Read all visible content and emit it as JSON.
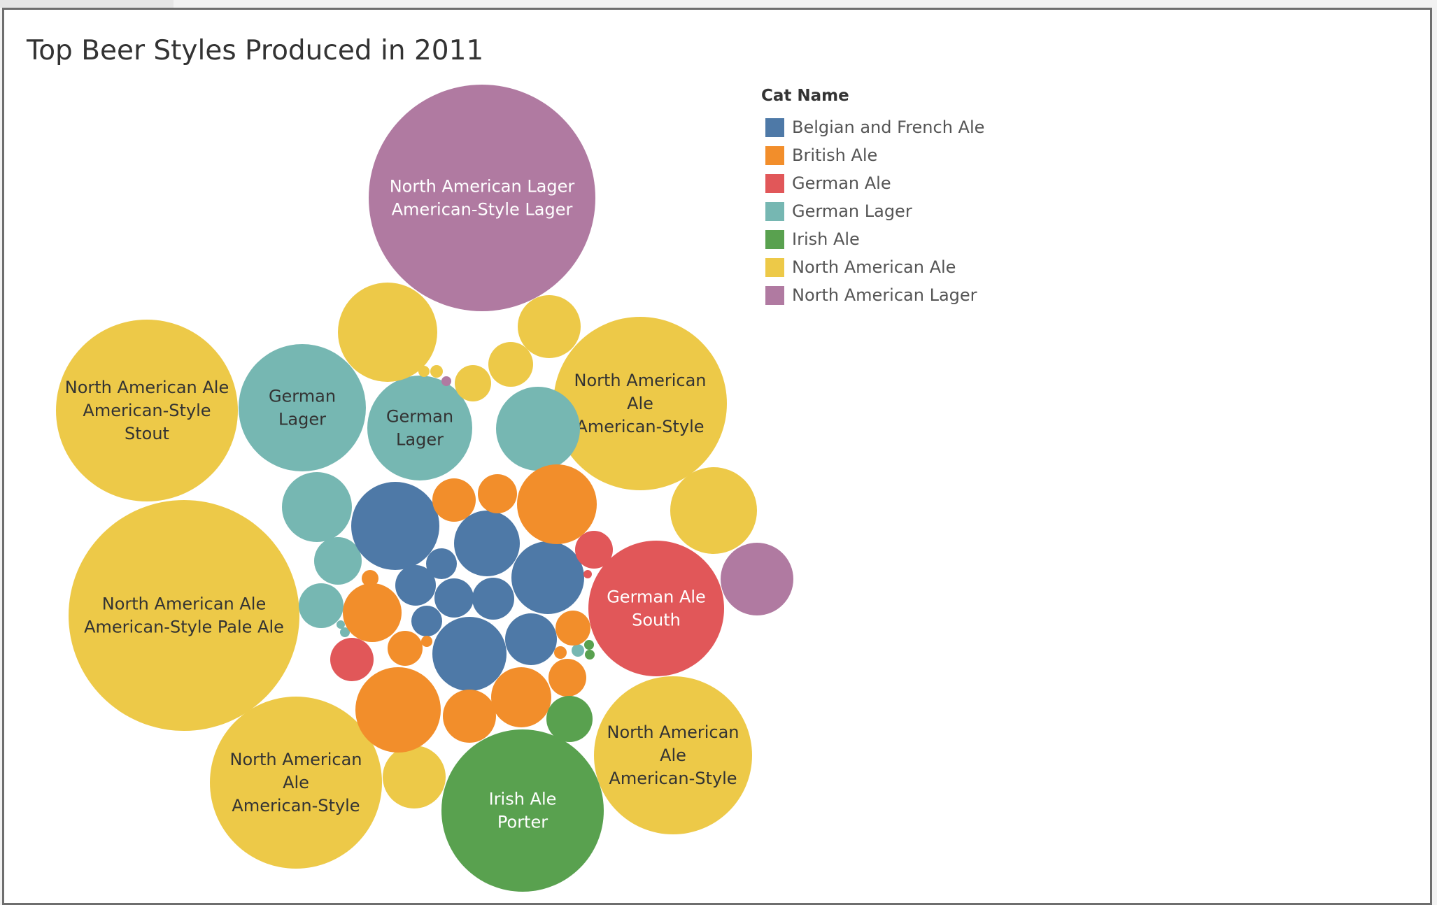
{
  "chart_data": {
    "type": "bubble",
    "title": "Top Beer Styles Produced in 2011",
    "legend": {
      "title": "Cat Name",
      "placement": "top-right",
      "items": [
        {
          "name": "Belgian and French Ale",
          "color": "#4e79a7"
        },
        {
          "name": "British Ale",
          "color": "#f28e2b"
        },
        {
          "name": "German Ale",
          "color": "#e15759"
        },
        {
          "name": "German Lager",
          "color": "#76b7b2"
        },
        {
          "name": "Irish Ale",
          "color": "#59a14f"
        },
        {
          "name": "North American Ale",
          "color": "#edc948"
        },
        {
          "name": "North American Lager",
          "color": "#b07aa1"
        }
      ]
    },
    "bubble_labels": [
      {
        "category": "North American Lager",
        "lines": [
          "North American Lager",
          "American-Style Lager"
        ],
        "text_color": "#ffffff"
      },
      {
        "category": "North American Ale",
        "lines": [
          "North American Ale",
          "American-Style Pale Ale"
        ],
        "text_color": "#333333"
      },
      {
        "category": "North American Ale",
        "lines": [
          "North American Ale",
          "American-Style",
          "Stout"
        ],
        "text_color": "#333333"
      },
      {
        "category": "North American Ale",
        "lines": [
          "North American",
          "Ale",
          "American-Style"
        ],
        "text_color": "#333333"
      },
      {
        "category": "North American Ale",
        "lines": [
          "North American",
          "Ale",
          "American-Style"
        ],
        "text_color": "#333333"
      },
      {
        "category": "North American Ale",
        "lines": [
          "North American",
          "Ale",
          "American-Style"
        ],
        "text_color": "#333333"
      },
      {
        "category": "Irish Ale",
        "lines": [
          "Irish Ale",
          "Porter"
        ],
        "text_color": "#ffffff"
      },
      {
        "category": "German Ale",
        "lines": [
          "German Ale",
          "South"
        ],
        "text_color": "#ffffff"
      },
      {
        "category": "German Lager",
        "lines": [
          "German",
          "Lager"
        ],
        "text_color": "#333333"
      },
      {
        "category": "German Lager",
        "lines": [
          "German",
          "Lager"
        ],
        "text_color": "#333333"
      }
    ]
  }
}
